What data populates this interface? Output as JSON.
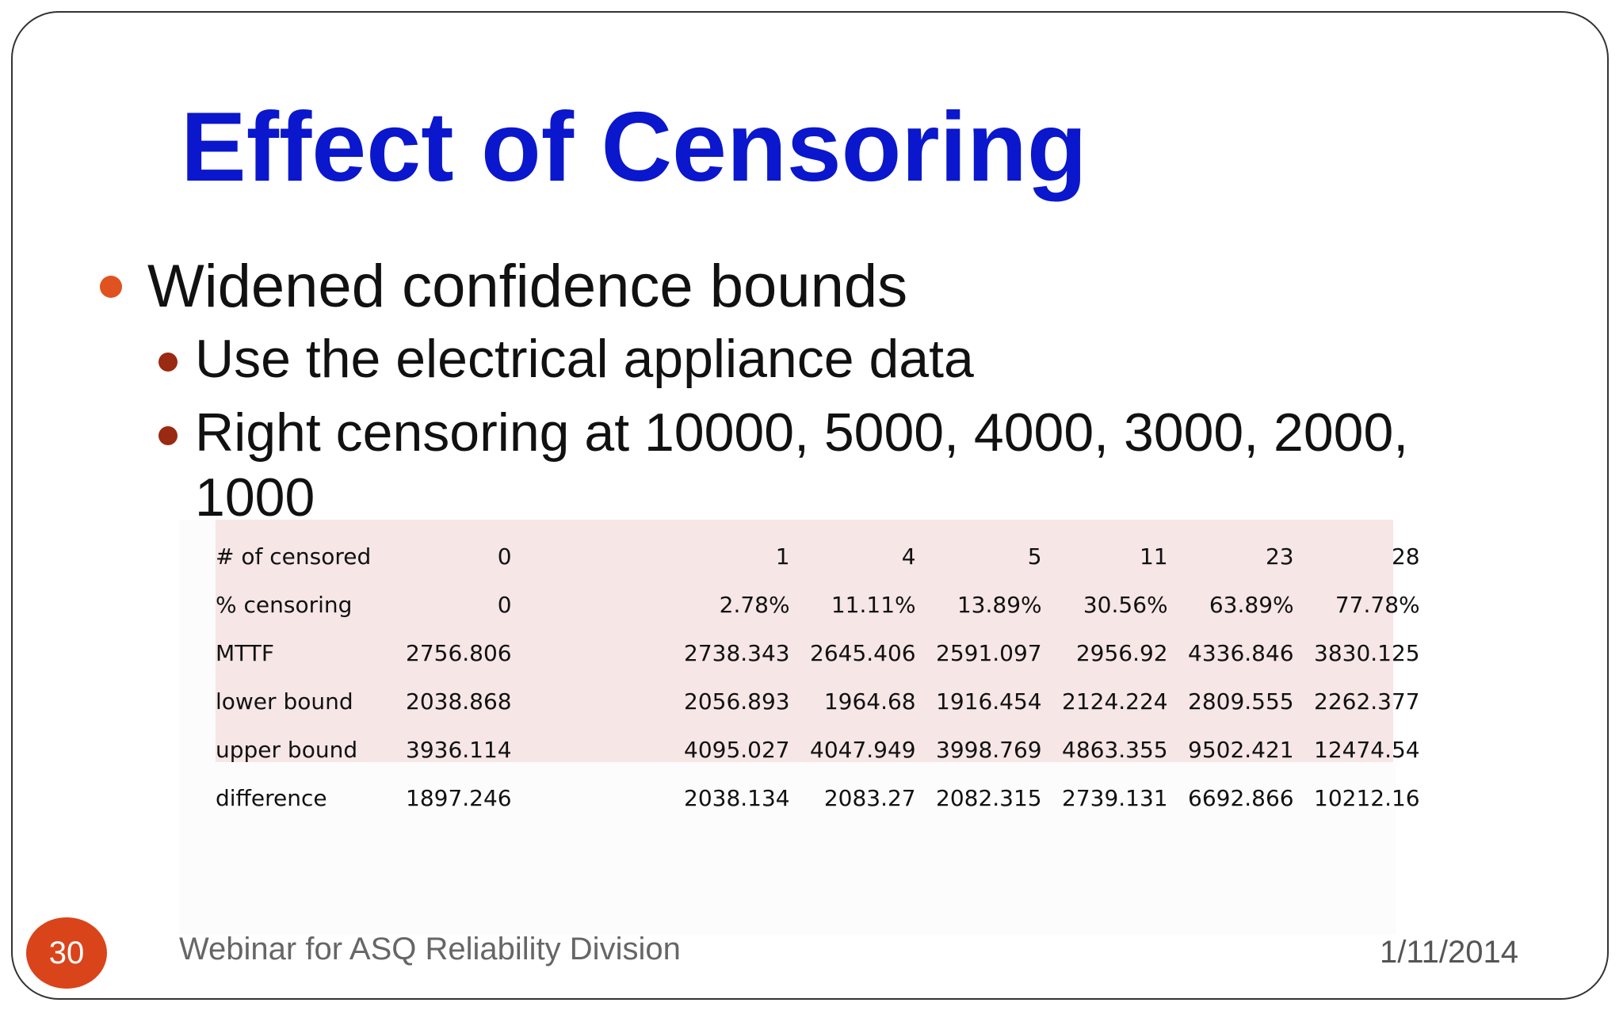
{
  "slide": {
    "title": "Effect of Censoring",
    "bullets": [
      {
        "level": 1,
        "text": "Widened confidence bounds"
      },
      {
        "level": 2,
        "text": "Use the electrical appliance data"
      },
      {
        "level": 2,
        "text": "Right censoring at 10000, 5000, 4000, 3000, 2000, 1000"
      }
    ],
    "table": {
      "rows": [
        {
          "label": "# of censored",
          "values": [
            "0",
            "1",
            "4",
            "5",
            "11",
            "23",
            "28"
          ]
        },
        {
          "label": "% censoring",
          "values": [
            "0",
            "2.78%",
            "11.11%",
            "13.89%",
            "30.56%",
            "63.89%",
            "77.78%"
          ]
        },
        {
          "label": "MTTF",
          "values": [
            "2756.806",
            "2738.343",
            "2645.406",
            "2591.097",
            "2956.92",
            "4336.846",
            "3830.125"
          ]
        },
        {
          "label": "lower bound",
          "values": [
            "2038.868",
            "2056.893",
            "1964.68",
            "1916.454",
            "2124.224",
            "2809.555",
            "2262.377"
          ]
        },
        {
          "label": "upper bound",
          "values": [
            "3936.114",
            "4095.027",
            "4047.949",
            "3998.769",
            "4863.355",
            "9502.421",
            "12474.54"
          ]
        },
        {
          "label": "difference",
          "values": [
            "1897.246",
            "2038.134",
            "2083.27",
            "2082.315",
            "2739.131",
            "6692.866",
            "10212.16"
          ]
        }
      ]
    },
    "footer": {
      "slide_number": "30",
      "text": "Webinar for ASQ Reliability Division",
      "date": "1/11/2014"
    },
    "colors": {
      "title": "#0a17cc",
      "bullet_level1": "#e0521f",
      "bullet_level2": "#9a2a12",
      "table_shade": "#f6e6e6",
      "slide_number_bg": "#d9441b"
    }
  }
}
